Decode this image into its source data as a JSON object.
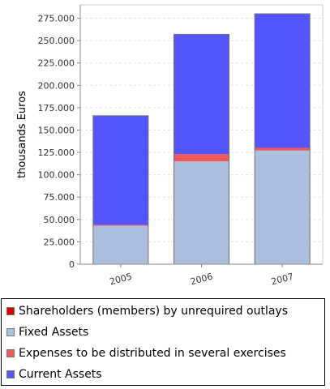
{
  "chart_data": {
    "type": "bar",
    "stacked": true,
    "categories": [
      "2005",
      "2006",
      "2007"
    ],
    "ylabel": "thousands Euros",
    "xlabel": "",
    "ylim": [
      0,
      290000
    ],
    "yticks": [
      0,
      25000,
      50000,
      75000,
      100000,
      125000,
      150000,
      175000,
      200000,
      225000,
      250000,
      275000
    ],
    "ytick_labels": [
      "0",
      "25.000",
      "50.000",
      "75.000",
      "100.000",
      "125.000",
      "150.000",
      "175.000",
      "200.000",
      "225.000",
      "250.000",
      "275.000"
    ],
    "grid": true,
    "legend_position": "bottom",
    "series": [
      {
        "name": "Shareholders (members) by unrequired outlays",
        "color": "#dd0000",
        "values": [
          0,
          0,
          0
        ]
      },
      {
        "name": "Fixed Assets",
        "color": "#aac0de",
        "values": [
          43000,
          115000,
          127000
        ]
      },
      {
        "name": "Expenses to be distributed in several exercises",
        "color": "#f05a5a",
        "values": [
          1000,
          8000,
          3000
        ]
      },
      {
        "name": "Current Assets",
        "color": "#5555ff",
        "values": [
          122000,
          134000,
          150000
        ]
      }
    ]
  }
}
